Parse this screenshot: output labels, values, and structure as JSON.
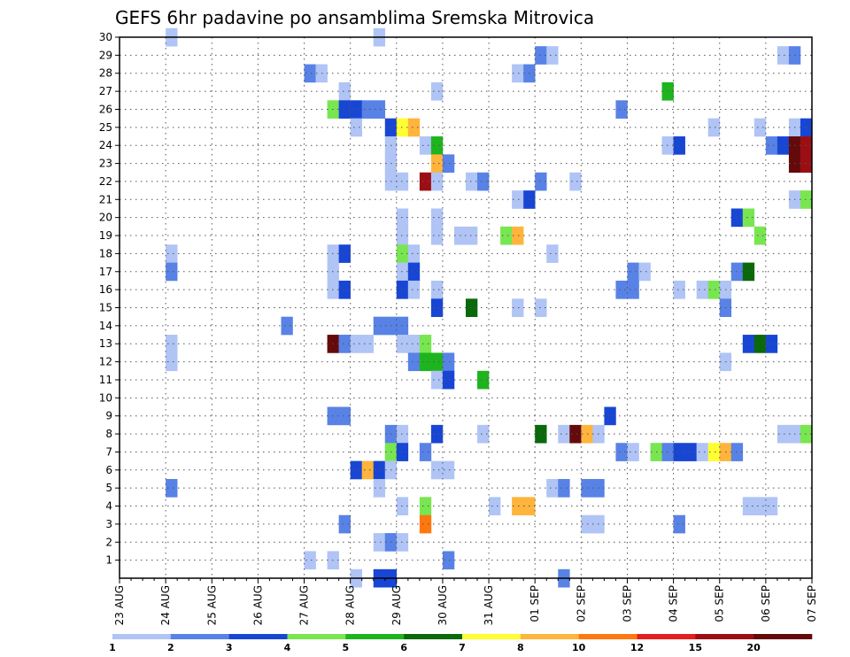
{
  "chart_data": {
    "type": "heatmap",
    "title": "GEFS 6hr padavine po ansamblima Sremska Mitrovica",
    "xlabel": "",
    "ylabel": "",
    "x_tick_labels": [
      "23 AUG",
      "24 AUG",
      "25 AUG",
      "26 AUG",
      "27 AUG",
      "28 AUG",
      "29 AUG",
      "30 AUG",
      "31 AUG",
      "01 SEP",
      "02 SEP",
      "03 SEP",
      "04 SEP",
      "05 SEP",
      "06 SEP",
      "07 SEP"
    ],
    "y_tick_labels": [
      1,
      2,
      3,
      4,
      5,
      6,
      7,
      8,
      9,
      10,
      11,
      12,
      13,
      14,
      15,
      16,
      17,
      18,
      19,
      20,
      21,
      22,
      23,
      24,
      25,
      26,
      27,
      28,
      29,
      30
    ],
    "xlim_steps": [
      0,
      60
    ],
    "ylim": [
      0,
      30
    ],
    "grid": true,
    "legend_placement": "bottom",
    "colorbar": {
      "labels": [
        "1",
        "2",
        "3",
        "4",
        "5",
        "6",
        "7",
        "8",
        "10",
        "12",
        "15",
        "20"
      ],
      "colors": [
        "#b0c4f5",
        "#5882e6",
        "#1846d4",
        "#78e650",
        "#1eb41e",
        "#0a690a",
        "#ffff32",
        "#ffb43c",
        "#ff780f",
        "#e61e1e",
        "#9b0f14",
        "#640a0a"
      ]
    },
    "cells": [
      [
        4.5,
        30,
        0
      ],
      [
        22.5,
        30,
        0
      ],
      [
        36.5,
        29,
        1
      ],
      [
        37.5,
        29,
        0
      ],
      [
        57.5,
        29,
        0
      ],
      [
        58.5,
        29,
        1
      ],
      [
        16.5,
        28,
        1
      ],
      [
        17.5,
        28,
        0
      ],
      [
        34.5,
        28,
        0
      ],
      [
        35.5,
        28,
        1
      ],
      [
        19.5,
        27,
        0
      ],
      [
        27.5,
        27,
        0
      ],
      [
        47.5,
        27,
        4
      ],
      [
        18.5,
        26,
        3
      ],
      [
        19.5,
        26,
        2
      ],
      [
        20.5,
        26,
        2
      ],
      [
        21.5,
        26,
        1
      ],
      [
        22.5,
        26,
        1
      ],
      [
        43.5,
        26,
        1
      ],
      [
        20.5,
        25,
        0
      ],
      [
        23.5,
        25,
        2
      ],
      [
        24.5,
        25,
        6
      ],
      [
        25.5,
        25,
        7
      ],
      [
        51.5,
        25,
        0
      ],
      [
        55.5,
        25,
        0
      ],
      [
        58.5,
        25,
        0
      ],
      [
        59.5,
        25,
        2
      ],
      [
        23.5,
        24,
        0
      ],
      [
        26.5,
        24,
        0
      ],
      [
        27.5,
        24,
        4
      ],
      [
        47.5,
        24,
        0
      ],
      [
        48.5,
        24,
        2
      ],
      [
        56.5,
        24,
        1
      ],
      [
        57.5,
        24,
        2
      ],
      [
        58.5,
        24,
        11
      ],
      [
        59.5,
        24,
        10
      ],
      [
        23.5,
        23,
        0
      ],
      [
        27.5,
        23,
        7
      ],
      [
        28.5,
        23,
        1
      ],
      [
        58.5,
        23,
        11
      ],
      [
        59.5,
        23,
        10
      ],
      [
        23.5,
        22,
        0
      ],
      [
        24.5,
        22,
        0
      ],
      [
        26.5,
        22,
        10
      ],
      [
        27.5,
        22,
        0
      ],
      [
        30.5,
        22,
        0
      ],
      [
        31.5,
        22,
        1
      ],
      [
        36.5,
        22,
        1
      ],
      [
        39.5,
        22,
        0
      ],
      [
        34.5,
        21,
        0
      ],
      [
        35.5,
        21,
        2
      ],
      [
        58.5,
        21,
        0
      ],
      [
        59.5,
        21,
        3
      ],
      [
        24.5,
        20,
        0
      ],
      [
        27.5,
        20,
        0
      ],
      [
        53.5,
        20,
        2
      ],
      [
        54.5,
        20,
        3
      ],
      [
        24.5,
        19,
        0
      ],
      [
        27.5,
        19,
        0
      ],
      [
        29.5,
        19,
        0
      ],
      [
        30.5,
        19,
        0
      ],
      [
        33.5,
        19,
        3
      ],
      [
        34.5,
        19,
        7
      ],
      [
        55.5,
        19,
        3
      ],
      [
        4.5,
        18,
        0
      ],
      [
        18.5,
        18,
        0
      ],
      [
        19.5,
        18,
        2
      ],
      [
        24.5,
        18,
        3
      ],
      [
        25.5,
        18,
        0
      ],
      [
        37.5,
        18,
        0
      ],
      [
        4.5,
        17,
        1
      ],
      [
        18.5,
        17,
        0
      ],
      [
        24.5,
        17,
        0
      ],
      [
        25.5,
        17,
        2
      ],
      [
        44.5,
        17,
        1
      ],
      [
        45.5,
        17,
        0
      ],
      [
        53.5,
        17,
        1
      ],
      [
        54.5,
        17,
        5
      ],
      [
        18.5,
        16,
        0
      ],
      [
        19.5,
        16,
        2
      ],
      [
        24.5,
        16,
        2
      ],
      [
        25.5,
        16,
        0
      ],
      [
        27.5,
        16,
        0
      ],
      [
        43.5,
        16,
        1
      ],
      [
        44.5,
        16,
        1
      ],
      [
        48.5,
        16,
        0
      ],
      [
        50.5,
        16,
        0
      ],
      [
        51.5,
        16,
        3
      ],
      [
        52.5,
        16,
        0
      ],
      [
        27.5,
        15,
        2
      ],
      [
        30.5,
        15,
        5
      ],
      [
        34.5,
        15,
        0
      ],
      [
        36.5,
        15,
        0
      ],
      [
        52.5,
        15,
        1
      ],
      [
        14.5,
        14,
        1
      ],
      [
        22.5,
        14,
        1
      ],
      [
        23.5,
        14,
        1
      ],
      [
        24.5,
        14,
        1
      ],
      [
        4.5,
        13,
        0
      ],
      [
        18.5,
        13,
        11
      ],
      [
        19.5,
        13,
        1
      ],
      [
        20.5,
        13,
        0
      ],
      [
        21.5,
        13,
        0
      ],
      [
        24.5,
        13,
        0
      ],
      [
        25.5,
        13,
        0
      ],
      [
        26.5,
        13,
        3
      ],
      [
        54.5,
        13,
        2
      ],
      [
        55.5,
        13,
        5
      ],
      [
        56.5,
        13,
        2
      ],
      [
        4.5,
        12,
        0
      ],
      [
        25.5,
        12,
        1
      ],
      [
        26.5,
        12,
        4
      ],
      [
        27.5,
        12,
        4
      ],
      [
        28.5,
        12,
        1
      ],
      [
        52.5,
        12,
        0
      ],
      [
        27.5,
        11,
        0
      ],
      [
        28.5,
        11,
        2
      ],
      [
        31.5,
        11,
        4
      ],
      [
        18.5,
        9,
        1
      ],
      [
        19.5,
        9,
        1
      ],
      [
        42.5,
        9,
        2
      ],
      [
        23.5,
        8,
        1
      ],
      [
        24.5,
        8,
        0
      ],
      [
        27.5,
        8,
        2
      ],
      [
        31.5,
        8,
        0
      ],
      [
        36.5,
        8,
        5
      ],
      [
        38.5,
        8,
        0
      ],
      [
        39.5,
        8,
        11
      ],
      [
        40.5,
        8,
        7
      ],
      [
        41.5,
        8,
        0
      ],
      [
        57.5,
        8,
        0
      ],
      [
        58.5,
        8,
        0
      ],
      [
        59.5,
        8,
        3
      ],
      [
        23.5,
        7,
        3
      ],
      [
        24.5,
        7,
        2
      ],
      [
        26.5,
        7,
        1
      ],
      [
        43.5,
        7,
        1
      ],
      [
        44.5,
        7,
        0
      ],
      [
        46.5,
        7,
        3
      ],
      [
        47.5,
        7,
        1
      ],
      [
        48.5,
        7,
        2
      ],
      [
        49.5,
        7,
        2
      ],
      [
        50.5,
        7,
        0
      ],
      [
        51.5,
        7,
        6
      ],
      [
        52.5,
        7,
        7
      ],
      [
        53.5,
        7,
        1
      ],
      [
        20.5,
        6,
        2
      ],
      [
        21.5,
        6,
        7
      ],
      [
        22.5,
        6,
        2
      ],
      [
        23.5,
        6,
        0
      ],
      [
        27.5,
        6,
        0
      ],
      [
        28.5,
        6,
        0
      ],
      [
        4.5,
        5,
        1
      ],
      [
        22.5,
        5,
        0
      ],
      [
        37.5,
        5,
        0
      ],
      [
        38.5,
        5,
        1
      ],
      [
        40.5,
        5,
        1
      ],
      [
        41.5,
        5,
        1
      ],
      [
        24.5,
        4,
        0
      ],
      [
        26.5,
        4,
        3
      ],
      [
        32.5,
        4,
        0
      ],
      [
        34.5,
        4,
        7
      ],
      [
        35.5,
        4,
        7
      ],
      [
        54.5,
        4,
        0
      ],
      [
        55.5,
        4,
        0
      ],
      [
        56.5,
        4,
        0
      ],
      [
        19.5,
        3,
        1
      ],
      [
        26.5,
        3,
        8
      ],
      [
        40.5,
        3,
        0
      ],
      [
        41.5,
        3,
        0
      ],
      [
        48.5,
        3,
        1
      ],
      [
        22.5,
        2,
        0
      ],
      [
        23.5,
        2,
        1
      ],
      [
        24.5,
        2,
        0
      ],
      [
        16.5,
        1,
        0
      ],
      [
        18.5,
        1,
        0
      ],
      [
        28.5,
        1,
        1
      ],
      [
        20.5,
        0,
        0
      ],
      [
        22.5,
        0,
        2
      ],
      [
        23.5,
        0,
        2
      ],
      [
        38.5,
        0,
        1
      ]
    ]
  }
}
